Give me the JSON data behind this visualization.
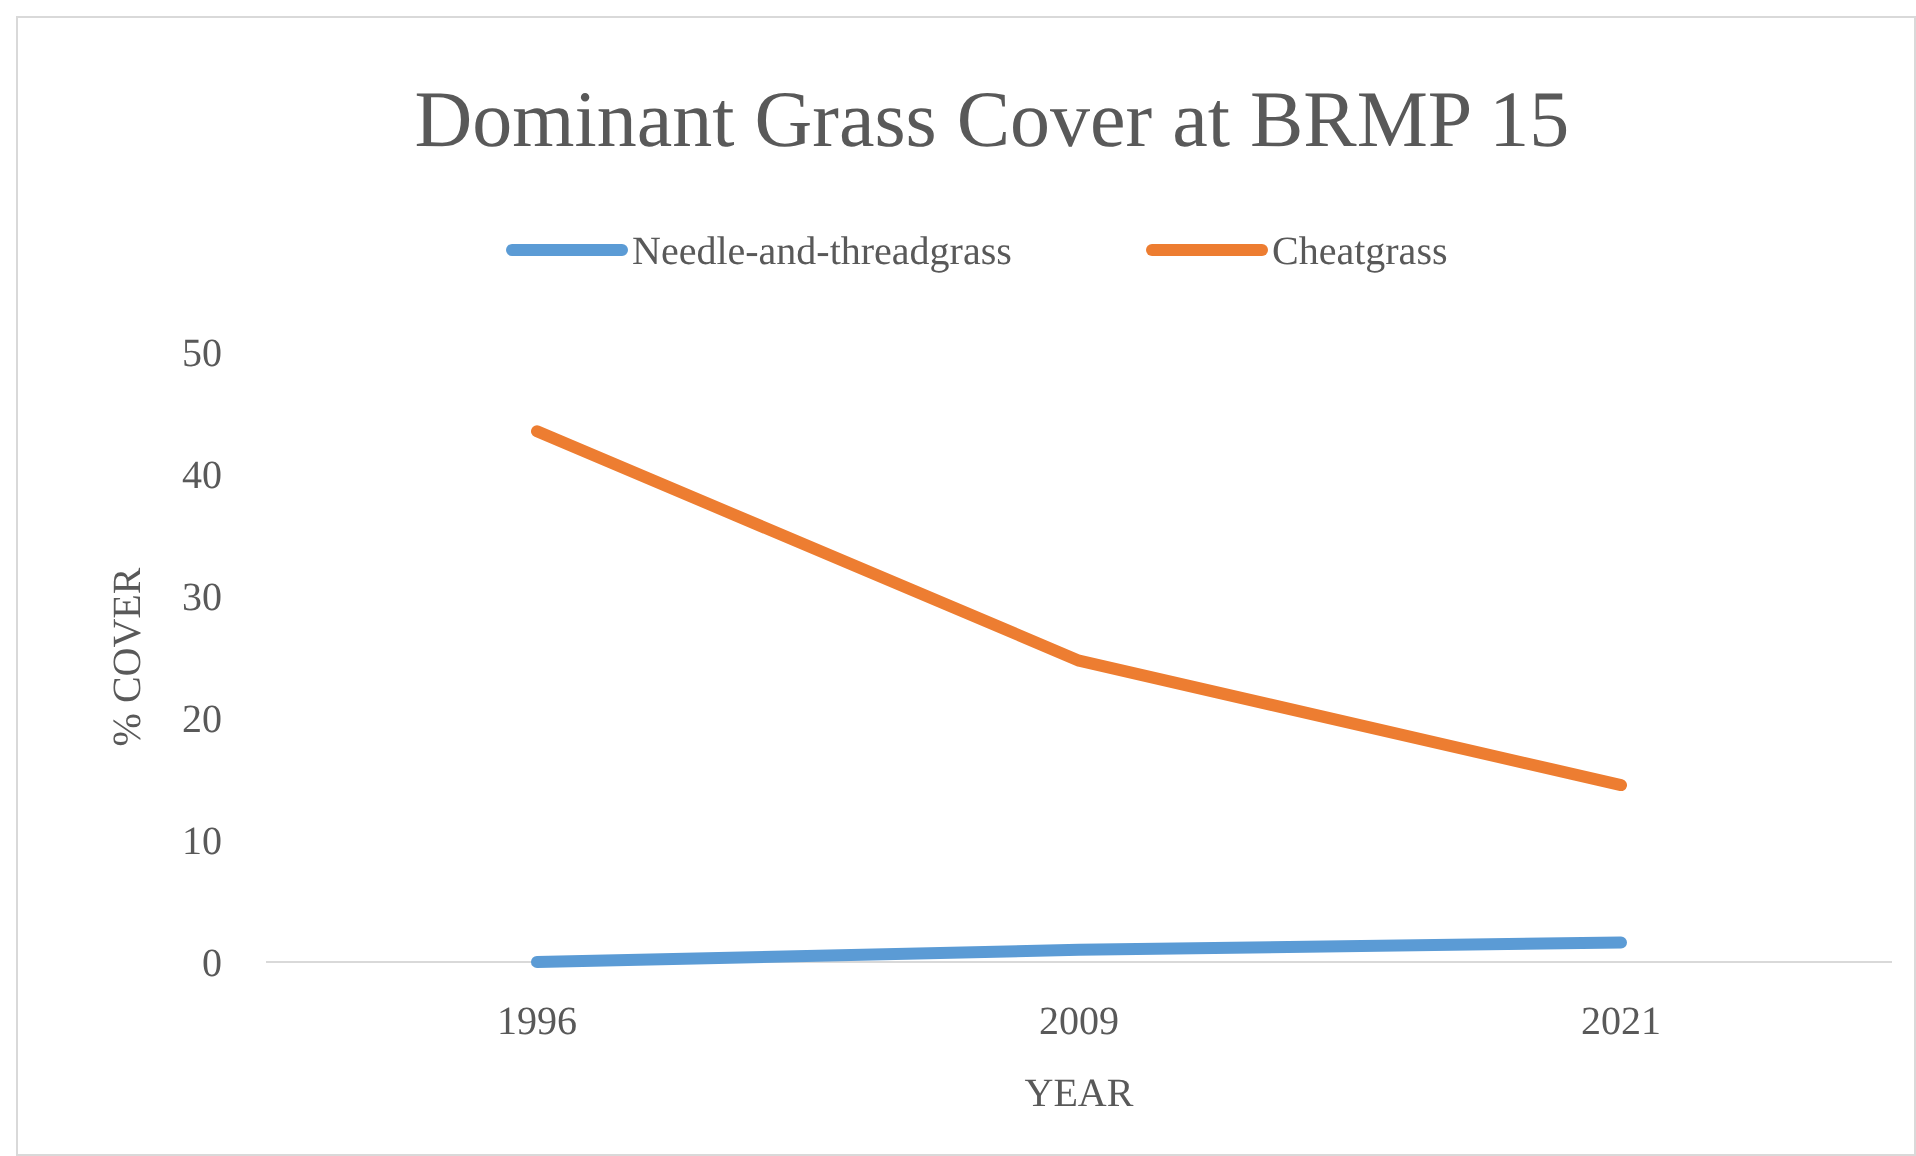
{
  "chart_data": {
    "type": "line",
    "title": "Dominant Grass Cover at BRMP 15",
    "xlabel": "YEAR",
    "ylabel": "% COVER",
    "categories": [
      "1996",
      "2009",
      "2021"
    ],
    "series": [
      {
        "name": "Needle-and-threadgrass",
        "color": "#5b9bd5",
        "values": [
          0,
          1,
          1.6
        ]
      },
      {
        "name": "Cheatgrass",
        "color": "#ed7d31",
        "values": [
          43.5,
          24.7,
          14.5
        ]
      }
    ],
    "ylim": [
      0,
      50
    ],
    "yticks": [
      0,
      10,
      20,
      30,
      40,
      50
    ],
    "grid": false,
    "legend": "top",
    "marker": "none",
    "line_style": "solid"
  }
}
